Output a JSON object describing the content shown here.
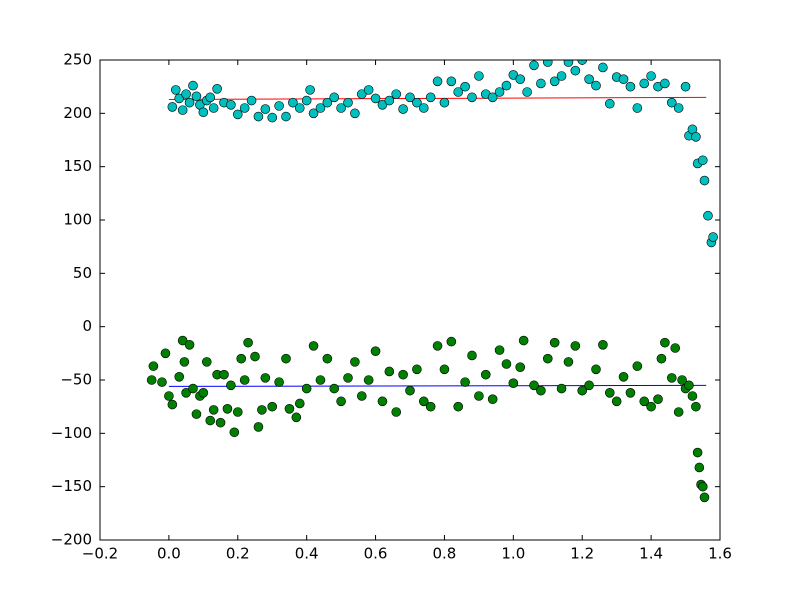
{
  "chart_data": {
    "type": "scatter",
    "xlim": [
      -0.2,
      1.6
    ],
    "ylim": [
      -200,
      250
    ],
    "xticks": [
      {
        "value": -0.2,
        "label": "−0.2"
      },
      {
        "value": 0,
        "label": "0.0"
      },
      0.2,
      0.4,
      0.6,
      0.8,
      {
        "value": 1,
        "label": "1.0"
      },
      1.2,
      1.4,
      1.6
    ],
    "yticks": [
      {
        "value": -200,
        "label": "−200"
      },
      {
        "value": -150,
        "label": "−150"
      },
      {
        "value": -100,
        "label": "−100"
      },
      {
        "value": -50,
        "label": "−50"
      },
      0,
      50,
      100,
      150,
      200,
      250
    ],
    "series": [
      {
        "style": "line",
        "color": "#ff0000",
        "x": [
          0,
          1.56
        ],
        "values": [
          213,
          215
        ]
      },
      {
        "style": "line",
        "color": "#0000ff",
        "x": [
          0,
          1.56
        ],
        "values": [
          -56,
          -55
        ]
      },
      {
        "style": "marker",
        "color": "#00bfbf",
        "x": [
          0.01,
          0.02,
          0.03,
          0.04,
          0.05,
          0.06,
          0.07,
          0.08,
          0.09,
          0.1,
          0.11,
          0.12,
          0.13,
          0.14,
          0.16,
          0.18,
          0.2,
          0.22,
          0.24,
          0.26,
          0.28,
          0.3,
          0.32,
          0.34,
          0.36,
          0.38,
          0.4,
          0.41,
          0.42,
          0.44,
          0.46,
          0.48,
          0.5,
          0.52,
          0.54,
          0.56,
          0.58,
          0.6,
          0.62,
          0.64,
          0.66,
          0.68,
          0.7,
          0.72,
          0.74,
          0.76,
          0.78,
          0.8,
          0.82,
          0.84,
          0.86,
          0.88,
          0.9,
          0.92,
          0.94,
          0.96,
          0.98,
          1.0,
          1.02,
          1.04,
          1.06,
          1.08,
          1.1,
          1.12,
          1.14,
          1.16,
          1.18,
          1.2,
          1.22,
          1.24,
          1.26,
          1.28,
          1.3,
          1.32,
          1.34,
          1.36,
          1.38,
          1.4,
          1.42,
          1.44,
          1.46,
          1.48,
          1.5,
          1.51,
          1.52,
          1.53,
          1.535,
          1.55,
          1.555,
          1.565,
          1.575,
          1.58
        ],
        "values": [
          206,
          222,
          214,
          203,
          218,
          210,
          226,
          216,
          208,
          201,
          212,
          215,
          205,
          223,
          210,
          208,
          199,
          205,
          212,
          197,
          204,
          196,
          207,
          197,
          210,
          205,
          212,
          222,
          200,
          205,
          210,
          215,
          205,
          210,
          200,
          218,
          222,
          214,
          208,
          212,
          218,
          204,
          215,
          210,
          205,
          215,
          230,
          210,
          230,
          220,
          225,
          215,
          235,
          218,
          215,
          220,
          226,
          236,
          232,
          220,
          245,
          228,
          248,
          230,
          235,
          248,
          240,
          250,
          232,
          226,
          243,
          209,
          234,
          232,
          225,
          205,
          228,
          235,
          225,
          228,
          210,
          205,
          225,
          179,
          185,
          178,
          153,
          156,
          137,
          104,
          79,
          84
        ]
      },
      {
        "style": "marker",
        "color": "#008000",
        "x": [
          -0.05,
          -0.045,
          -0.02,
          -0.01,
          0.0,
          0.01,
          0.03,
          0.04,
          0.045,
          0.05,
          0.06,
          0.07,
          0.08,
          0.09,
          0.1,
          0.11,
          0.12,
          0.13,
          0.14,
          0.15,
          0.16,
          0.17,
          0.18,
          0.19,
          0.2,
          0.21,
          0.22,
          0.23,
          0.25,
          0.26,
          0.27,
          0.28,
          0.3,
          0.32,
          0.34,
          0.35,
          0.37,
          0.38,
          0.4,
          0.42,
          0.44,
          0.46,
          0.48,
          0.5,
          0.52,
          0.54,
          0.56,
          0.58,
          0.6,
          0.62,
          0.64,
          0.66,
          0.68,
          0.7,
          0.72,
          0.74,
          0.76,
          0.78,
          0.8,
          0.82,
          0.84,
          0.86,
          0.88,
          0.9,
          0.92,
          0.94,
          0.96,
          0.98,
          1.0,
          1.02,
          1.03,
          1.06,
          1.08,
          1.1,
          1.12,
          1.14,
          1.16,
          1.18,
          1.2,
          1.22,
          1.24,
          1.26,
          1.28,
          1.3,
          1.32,
          1.34,
          1.36,
          1.38,
          1.4,
          1.42,
          1.43,
          1.44,
          1.46,
          1.47,
          1.48,
          1.49,
          1.5,
          1.51,
          1.52,
          1.53,
          1.535,
          1.54,
          1.545,
          1.55,
          1.555
        ],
        "values": [
          -50,
          -37,
          -52,
          -25,
          -65,
          -73,
          -47,
          -13,
          -33,
          -62,
          -17,
          -58,
          -82,
          -65,
          -62,
          -33,
          -88,
          -78,
          -45,
          -90,
          -45,
          -77,
          -55,
          -99,
          -80,
          -30,
          -50,
          -15,
          -28,
          -94,
          -78,
          -48,
          -75,
          -52,
          -30,
          -77,
          -85,
          -72,
          -58,
          -18,
          -50,
          -30,
          -58,
          -70,
          -48,
          -33,
          -65,
          -50,
          -23,
          -70,
          -42,
          -80,
          -45,
          -60,
          -40,
          -70,
          -75,
          -18,
          -40,
          -14,
          -75,
          -52,
          -27,
          -65,
          -45,
          -68,
          -22,
          -35,
          -53,
          -38,
          -13,
          -55,
          -60,
          -30,
          -15,
          -58,
          -33,
          -18,
          -60,
          -55,
          -40,
          -17,
          -62,
          -70,
          -47,
          -62,
          -37,
          -70,
          -75,
          -68,
          -30,
          -15,
          -48,
          -20,
          -80,
          -50,
          -58,
          -55,
          -65,
          -75,
          -118,
          -132,
          -148,
          -150,
          -160
        ]
      }
    ]
  }
}
